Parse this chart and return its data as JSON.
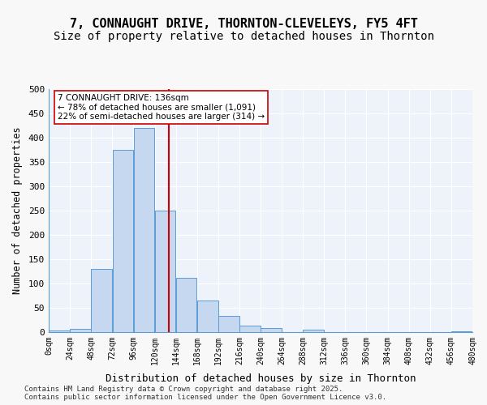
{
  "title": "7, CONNAUGHT DRIVE, THORNTON-CLEVELEYS, FY5 4FT",
  "subtitle": "Size of property relative to detached houses in Thornton",
  "xlabel": "Distribution of detached houses by size in Thornton",
  "ylabel": "Number of detached properties",
  "bar_color": "#c5d8f0",
  "bar_edge_color": "#5b9bd5",
  "bg_color": "#eef3fb",
  "grid_color": "#ffffff",
  "bins": [
    0,
    24,
    48,
    72,
    96,
    120,
    144,
    168,
    192,
    216,
    240,
    264,
    288,
    312,
    336,
    360,
    384,
    408,
    432,
    456,
    480
  ],
  "values": [
    3,
    6,
    130,
    375,
    420,
    250,
    112,
    65,
    33,
    13,
    8,
    0,
    5,
    0,
    0,
    0,
    0,
    0,
    0,
    2
  ],
  "property_size": 136,
  "vline_color": "#cc0000",
  "annotation_text": "7 CONNAUGHT DRIVE: 136sqm\n← 78% of detached houses are smaller (1,091)\n22% of semi-detached houses are larger (314) →",
  "annotation_box_color": "#ffffff",
  "annotation_box_edge": "#cc0000",
  "footer_line1": "Contains HM Land Registry data © Crown copyright and database right 2025.",
  "footer_line2": "Contains public sector information licensed under the Open Government Licence v3.0.",
  "ylim": [
    0,
    500
  ],
  "title_fontsize": 11,
  "subtitle_fontsize": 10,
  "tick_labels": [
    "0sqm",
    "24sqm",
    "48sqm",
    "72sqm",
    "96sqm",
    "120sqm",
    "144sqm",
    "168sqm",
    "192sqm",
    "216sqm",
    "240sqm",
    "264sqm",
    "288sqm",
    "312sqm",
    "336sqm",
    "360sqm",
    "384sqm",
    "408sqm",
    "432sqm",
    "456sqm",
    "480sqm"
  ]
}
